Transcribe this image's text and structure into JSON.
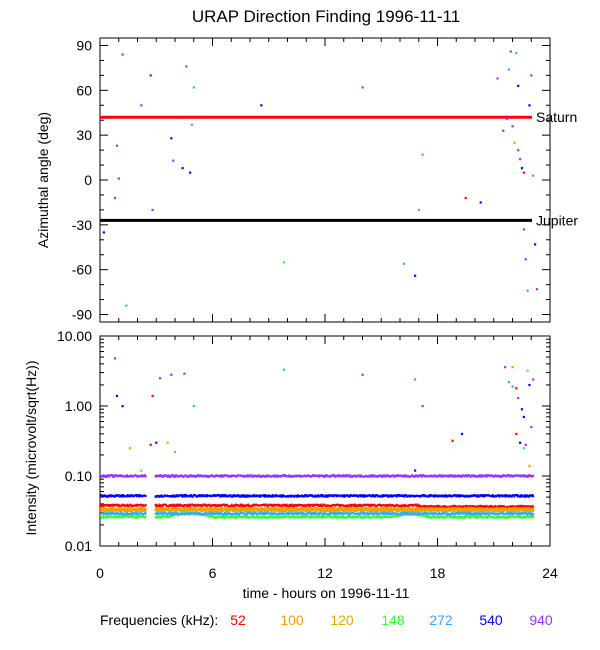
{
  "title": "URAP Direction Finding  1996-11-11",
  "chart_data": [
    {
      "type": "scatter",
      "ylabel": "Azimuthal angle (deg)",
      "ylim": [
        -95,
        95
      ],
      "xlim": [
        0,
        24
      ],
      "yticks": [
        90,
        60,
        30,
        0,
        -30,
        -60,
        -90
      ],
      "reference_lines": [
        {
          "label": "Saturn",
          "y": 42,
          "color": "#ff0000"
        },
        {
          "label": "Jupiter",
          "y": -27,
          "color": "#000000"
        }
      ],
      "points": [
        [
          0.2,
          -35,
          "#0000ff"
        ],
        [
          0.8,
          -12,
          "#9933ff"
        ],
        [
          0.9,
          23,
          "#9933ff"
        ],
        [
          1.0,
          1,
          "#9933ff"
        ],
        [
          1.2,
          84,
          "#9933ff"
        ],
        [
          1.4,
          -84,
          "#33aaff"
        ],
        [
          2.2,
          50,
          "#9933ff"
        ],
        [
          2.7,
          70,
          "#ff0000"
        ],
        [
          2.8,
          -20,
          "#9933ff"
        ],
        [
          3.8,
          28,
          "#0000ff"
        ],
        [
          3.9,
          13,
          "#9933ff"
        ],
        [
          4.4,
          8,
          "#0000ff"
        ],
        [
          4.6,
          76,
          "#9933ff"
        ],
        [
          4.8,
          5,
          "#0000ff"
        ],
        [
          4.9,
          37,
          "#33aaff"
        ],
        [
          5.0,
          62,
          "#33aaff"
        ],
        [
          8.6,
          50,
          "#0000ff"
        ],
        [
          9.8,
          -55,
          "#33ff33"
        ],
        [
          14.0,
          62,
          "#9933ff"
        ],
        [
          16.2,
          -56,
          "#33aaff"
        ],
        [
          16.8,
          -64,
          "#0000ff"
        ],
        [
          17.0,
          -20,
          "#33aaff"
        ],
        [
          17.2,
          17,
          "#33aaff"
        ],
        [
          19.5,
          -12,
          "#ff0000"
        ],
        [
          20.3,
          -15,
          "#0000ff"
        ],
        [
          21.2,
          68,
          "#9933ff"
        ],
        [
          21.5,
          33,
          "#9933ff"
        ],
        [
          21.7,
          41,
          "#9933ff"
        ],
        [
          21.8,
          74,
          "#33aaff"
        ],
        [
          21.9,
          86,
          "#9933ff"
        ],
        [
          22.0,
          36,
          "#9933ff"
        ],
        [
          22.1,
          25,
          "#ff9900"
        ],
        [
          22.2,
          85,
          "#33aaff"
        ],
        [
          22.3,
          63,
          "#0000ff"
        ],
        [
          22.4,
          14,
          "#9933ff"
        ],
        [
          22.5,
          8,
          "#0000ff"
        ],
        [
          22.6,
          -33,
          "#9933ff"
        ],
        [
          22.7,
          -53,
          "#9933ff"
        ],
        [
          22.8,
          -74,
          "#33aaff"
        ],
        [
          22.9,
          50,
          "#0000ff"
        ],
        [
          23.0,
          70,
          "#9933ff"
        ],
        [
          23.1,
          3,
          "#33aaff"
        ],
        [
          23.2,
          -43,
          "#0000ff"
        ],
        [
          23.3,
          -73,
          "#9933ff"
        ],
        [
          22.3,
          20,
          "#9933ff"
        ],
        [
          22.6,
          5,
          "#ff0000"
        ]
      ]
    },
    {
      "type": "scatter",
      "ylabel": "Intensity (microvolt/sqrt(Hz))",
      "xlabel": "time - hours on 1996-11-11",
      "ylim": [
        0.01,
        10
      ],
      "yscale": "log",
      "xlim": [
        0,
        24
      ],
      "yticks": [
        "10.00",
        "1.00",
        "0.10",
        "0.01"
      ],
      "xticks": [
        0,
        6,
        12,
        18,
        24
      ],
      "series": [
        {
          "freq": "52",
          "color": "#ff0000",
          "level": 0.038
        },
        {
          "freq": "100",
          "color": "#ff9900",
          "level": 0.034
        },
        {
          "freq": "120",
          "color": "#ddaa00",
          "level": 0.032
        },
        {
          "freq": "148",
          "color": "#33ff33",
          "level": 0.026
        },
        {
          "freq": "272",
          "color": "#33aaff",
          "level": 0.029
        },
        {
          "freq": "540",
          "color": "#0000ff",
          "level": 0.052
        },
        {
          "freq": "940",
          "color": "#9933ff",
          "level": 0.1
        }
      ],
      "points": [
        [
          0.8,
          4.8,
          "#9933ff"
        ],
        [
          0.9,
          1.4,
          "#0000ff"
        ],
        [
          1.2,
          1.0,
          "#0000ff"
        ],
        [
          1.6,
          0.25,
          "#ff9900"
        ],
        [
          2.2,
          0.12,
          "#33ff33"
        ],
        [
          2.7,
          0.28,
          "#ff0000"
        ],
        [
          2.8,
          1.4,
          "#ff0000"
        ],
        [
          3.0,
          0.3,
          "#0000ff"
        ],
        [
          3.2,
          2.5,
          "#9933ff"
        ],
        [
          3.6,
          0.3,
          "#ff9900"
        ],
        [
          4.0,
          0.22,
          "#ddaa00"
        ],
        [
          3.8,
          2.8,
          "#9933ff"
        ],
        [
          4.5,
          2.9,
          "#9933ff"
        ],
        [
          5.0,
          1.0,
          "#33aaff"
        ],
        [
          9.8,
          3.3,
          "#33aaff"
        ],
        [
          14.0,
          2.8,
          "#9933ff"
        ],
        [
          16.8,
          2.4,
          "#33aaff"
        ],
        [
          17.2,
          1.0,
          "#9933ff"
        ],
        [
          18.8,
          0.32,
          "#ff0000"
        ],
        [
          19.3,
          0.4,
          "#0000ff"
        ],
        [
          16.8,
          0.12,
          "#0000ff"
        ],
        [
          21.6,
          3.6,
          "#9933ff"
        ],
        [
          21.8,
          2.2,
          "#33aaff"
        ],
        [
          22.0,
          3.6,
          "#ff9900"
        ],
        [
          22.2,
          1.8,
          "#ff0000"
        ],
        [
          22.3,
          1.3,
          "#9933ff"
        ],
        [
          22.5,
          0.9,
          "#0000ff"
        ],
        [
          22.6,
          0.7,
          "#0000ff"
        ],
        [
          22.7,
          0.28,
          "#9933ff"
        ],
        [
          22.8,
          3.2,
          "#33ff33"
        ],
        [
          22.9,
          2.0,
          "#0000ff"
        ],
        [
          23.0,
          0.5,
          "#9933ff"
        ],
        [
          22.4,
          0.3,
          "#0000ff"
        ],
        [
          22.2,
          0.4,
          "#ff0000"
        ],
        [
          23.1,
          2.4,
          "#9933ff"
        ],
        [
          22.9,
          0.14,
          "#ff9900"
        ],
        [
          22.0,
          1.9,
          "#33aaff"
        ],
        [
          22.6,
          0.25,
          "#33ff33"
        ]
      ]
    }
  ],
  "legend": {
    "label": "Frequencies (kHz):",
    "items": [
      {
        "text": "52",
        "color": "#ff0000"
      },
      {
        "text": "100",
        "color": "#ff9900"
      },
      {
        "text": "120",
        "color": "#ddaa00"
      },
      {
        "text": "148",
        "color": "#33ff33"
      },
      {
        "text": "272",
        "color": "#33aaff"
      },
      {
        "text": "540",
        "color": "#0000ff"
      },
      {
        "text": "940",
        "color": "#9933ff"
      }
    ]
  }
}
